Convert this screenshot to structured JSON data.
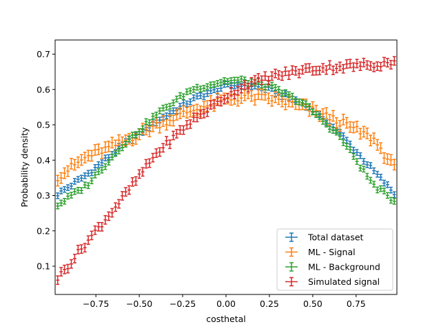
{
  "chart_data": {
    "type": "scatter",
    "title": "",
    "xlabel": "costhetal",
    "ylabel": "Probability density",
    "xlim": [
      -0.985,
      0.985
    ],
    "ylim": [
      0.02,
      0.74
    ],
    "xticks": [
      -0.75,
      -0.5,
      -0.25,
      0.0,
      0.25,
      0.5,
      0.75
    ],
    "xtick_labels": [
      "−0.75",
      "−0.50",
      "−0.25",
      "0.00",
      "0.25",
      "0.50",
      "0.75"
    ],
    "yticks": [
      0.1,
      0.2,
      0.3,
      0.4,
      0.5,
      0.6,
      0.7
    ],
    "ytick_labels": [
      "0.1",
      "0.2",
      "0.3",
      "0.4",
      "0.5",
      "0.6",
      "0.7"
    ],
    "grid": false,
    "legend_position": "lower-right",
    "x_range": [
      -0.98,
      0.98
    ],
    "n_bins": 100,
    "marker_style": "errorbar",
    "series": [
      {
        "name": "Total dataset",
        "color": "#1f77b4",
        "y_sampled": [
          0.3,
          0.36,
          0.44,
          0.51,
          0.57,
          0.61,
          0.615,
          0.6,
          0.56,
          0.48,
          0.37,
          0.3
        ],
        "y_at_x": [
          -0.98,
          -0.8,
          -0.6,
          -0.4,
          -0.2,
          0.0,
          0.1,
          0.25,
          0.45,
          0.65,
          0.85,
          0.98
        ],
        "y_err": 0.008
      },
      {
        "name": "ML - Signal",
        "color": "#ff7f0e",
        "y_sampled": [
          0.35,
          0.41,
          0.45,
          0.5,
          0.54,
          0.57,
          0.58,
          0.575,
          0.55,
          0.51,
          0.46,
          0.37
        ],
        "y_at_x": [
          -0.98,
          -0.8,
          -0.6,
          -0.4,
          -0.2,
          0.0,
          0.1,
          0.25,
          0.45,
          0.65,
          0.85,
          0.98
        ],
        "y_err": 0.015
      },
      {
        "name": "ML - Background",
        "color": "#2ca02c",
        "y_sampled": [
          0.27,
          0.33,
          0.44,
          0.53,
          0.6,
          0.625,
          0.625,
          0.61,
          0.56,
          0.47,
          0.33,
          0.28
        ],
        "y_at_x": [
          -0.98,
          -0.8,
          -0.6,
          -0.4,
          -0.2,
          0.0,
          0.1,
          0.25,
          0.45,
          0.65,
          0.85,
          0.98
        ],
        "y_err": 0.008
      },
      {
        "name": "Simulated signal",
        "color": "#d62728",
        "y_sampled": [
          0.06,
          0.17,
          0.29,
          0.42,
          0.51,
          0.58,
          0.61,
          0.635,
          0.655,
          0.665,
          0.67,
          0.68
        ],
        "y_at_x": [
          -0.98,
          -0.8,
          -0.6,
          -0.4,
          -0.2,
          0.0,
          0.1,
          0.25,
          0.45,
          0.65,
          0.85,
          0.98
        ],
        "y_err": 0.012
      }
    ]
  }
}
